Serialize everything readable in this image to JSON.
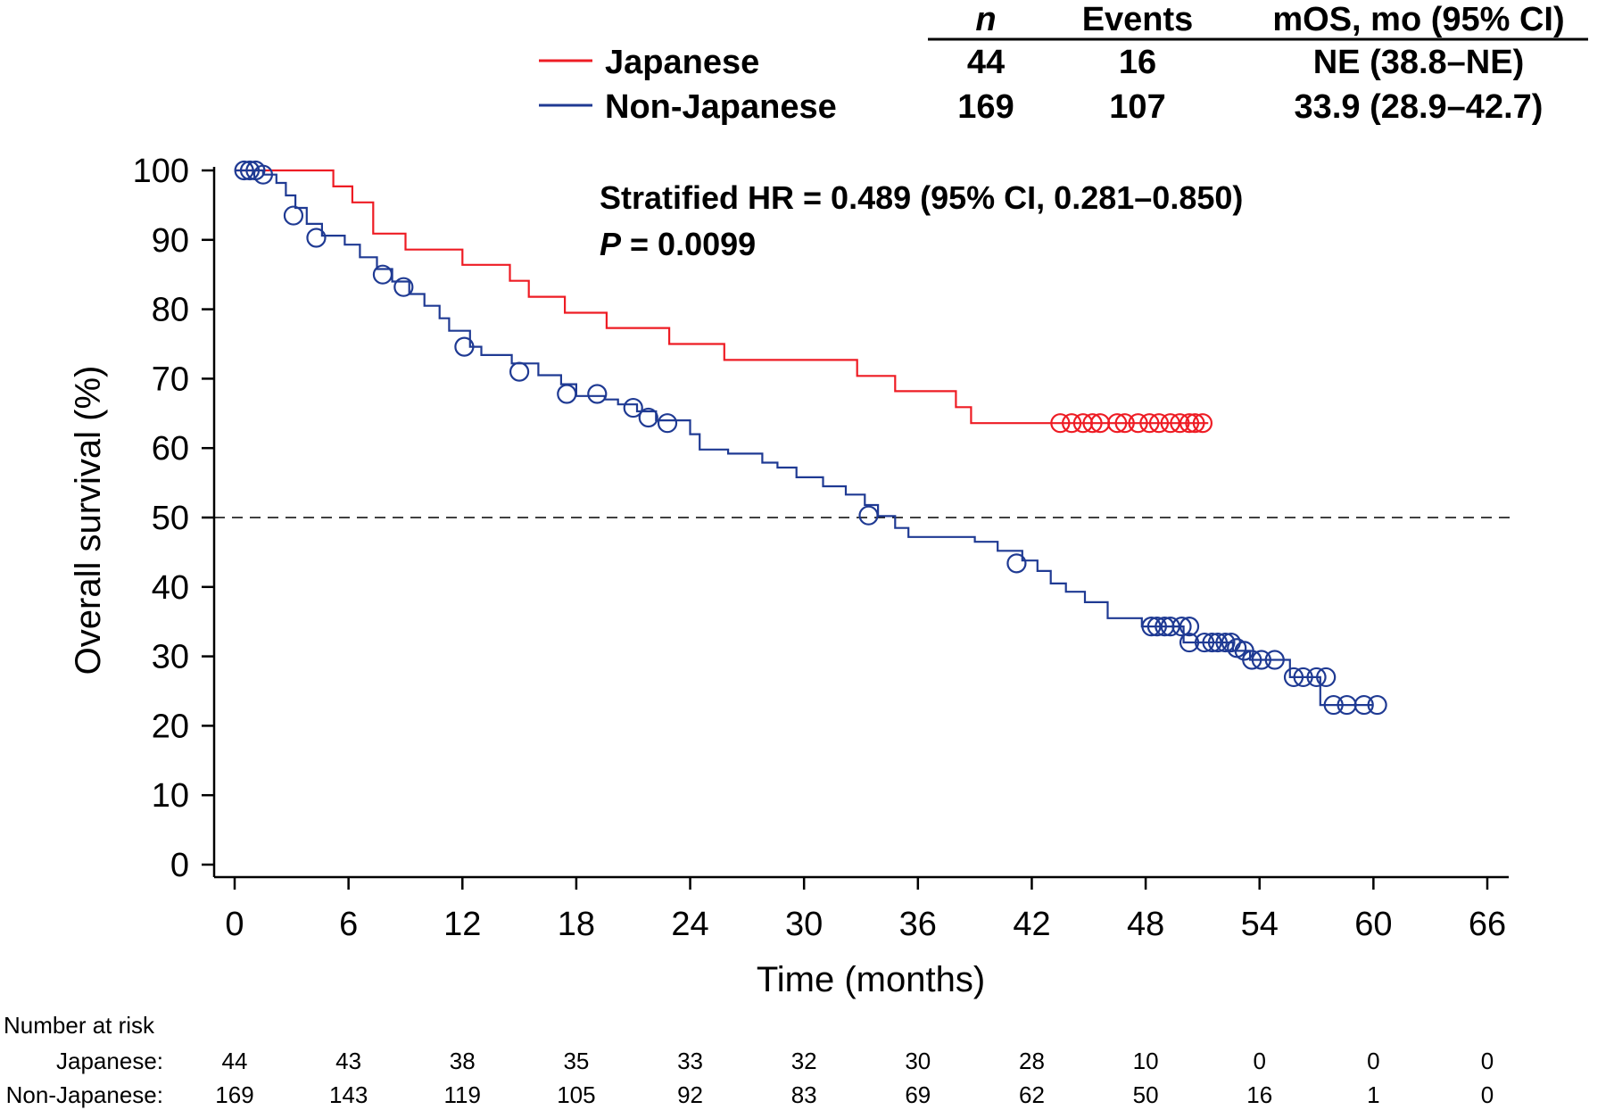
{
  "chart_data": {
    "type": "line",
    "subtype": "kaplan-meier",
    "xlabel": "Time (months)",
    "ylabel": "Overall survival (%)",
    "xlim": [
      0,
      66
    ],
    "ylim": [
      0,
      100
    ],
    "xticks": [
      "0",
      "6",
      "12",
      "18",
      "24",
      "30",
      "36",
      "42",
      "48",
      "54",
      "60",
      "66"
    ],
    "yticks": [
      "0",
      "10",
      "20",
      "30",
      "40",
      "50",
      "60",
      "70",
      "80",
      "90",
      "100"
    ],
    "reference_line": {
      "y": 50,
      "style": "dashed"
    },
    "annotation": {
      "hr_text": "Stratified HR = 0.489 (95% CI, 0.281–0.850)",
      "p_label": "P",
      "p_value": " = 0.0099"
    },
    "table_header": {
      "n": "n",
      "events": "Events",
      "mos": "mOS, mo (95% CI)"
    },
    "series": [
      {
        "name": "Japanese",
        "color": "#ee1c24",
        "n": "44",
        "events": "16",
        "mos": "NE (38.8–NE)",
        "steps": [
          [
            0,
            100
          ],
          [
            5.2,
            97.7
          ],
          [
            6.2,
            95.4
          ],
          [
            7.3,
            90.9
          ],
          [
            9.0,
            88.6
          ],
          [
            12.0,
            86.4
          ],
          [
            14.5,
            84.1
          ],
          [
            15.5,
            81.8
          ],
          [
            17.4,
            79.5
          ],
          [
            19.6,
            77.3
          ],
          [
            22.9,
            75.0
          ],
          [
            25.8,
            72.7
          ],
          [
            32.8,
            70.4
          ],
          [
            34.8,
            68.2
          ],
          [
            38.0,
            65.9
          ],
          [
            38.8,
            63.6
          ],
          [
            51.3,
            63.6
          ]
        ],
        "censored": [
          [
            43.5,
            63.6
          ],
          [
            44.1,
            63.6
          ],
          [
            44.7,
            63.6
          ],
          [
            45.2,
            63.6
          ],
          [
            45.6,
            63.6
          ],
          [
            46.5,
            63.6
          ],
          [
            46.9,
            63.6
          ],
          [
            47.6,
            63.6
          ],
          [
            48.2,
            63.6
          ],
          [
            48.7,
            63.6
          ],
          [
            49.3,
            63.6
          ],
          [
            49.8,
            63.6
          ],
          [
            50.3,
            63.6
          ],
          [
            50.6,
            63.6
          ],
          [
            51.0,
            63.6
          ]
        ]
      },
      {
        "name": "Non-Japanese",
        "color": "#1f3a93",
        "n": "169",
        "events": "107",
        "mos": "33.9 (28.9–42.7)",
        "steps": [
          [
            0,
            100
          ],
          [
            1.5,
            99.4
          ],
          [
            2.2,
            98.2
          ],
          [
            2.7,
            96.4
          ],
          [
            3.2,
            94.6
          ],
          [
            3.8,
            92.3
          ],
          [
            4.6,
            90.6
          ],
          [
            5.8,
            89.3
          ],
          [
            6.6,
            87.5
          ],
          [
            7.5,
            85.8
          ],
          [
            8.3,
            84.0
          ],
          [
            9.2,
            82.2
          ],
          [
            10.0,
            80.5
          ],
          [
            10.8,
            78.7
          ],
          [
            11.3,
            76.9
          ],
          [
            12.4,
            74.6
          ],
          [
            13.0,
            73.4
          ],
          [
            14.6,
            72.2
          ],
          [
            16.0,
            70.5
          ],
          [
            17.2,
            69.2
          ],
          [
            18.0,
            67.5
          ],
          [
            19.5,
            67.0
          ],
          [
            20.2,
            66.3
          ],
          [
            21.2,
            65.3
          ],
          [
            22.2,
            64.0
          ],
          [
            24.0,
            62.0
          ],
          [
            24.5,
            59.8
          ],
          [
            26.0,
            59.2
          ],
          [
            27.8,
            57.9
          ],
          [
            28.6,
            57.2
          ],
          [
            29.6,
            55.8
          ],
          [
            31.0,
            54.5
          ],
          [
            32.2,
            53.3
          ],
          [
            33.2,
            51.8
          ],
          [
            33.9,
            50.2
          ],
          [
            34.8,
            48.5
          ],
          [
            35.5,
            47.2
          ],
          [
            39.0,
            46.5
          ],
          [
            40.2,
            45.2
          ],
          [
            41.5,
            43.8
          ],
          [
            42.3,
            42.3
          ],
          [
            43.0,
            40.5
          ],
          [
            43.8,
            39.3
          ],
          [
            44.8,
            37.8
          ],
          [
            46.0,
            35.5
          ],
          [
            47.8,
            34.3
          ],
          [
            50.0,
            32.0
          ],
          [
            52.6,
            30.8
          ],
          [
            53.5,
            29.5
          ],
          [
            55.6,
            27.0
          ],
          [
            57.2,
            23.0
          ],
          [
            60.0,
            23.0
          ]
        ],
        "censored": [
          [
            0.5,
            100
          ],
          [
            0.8,
            100
          ],
          [
            1.1,
            100
          ],
          [
            1.5,
            99.4
          ],
          [
            3.1,
            93.5
          ],
          [
            4.3,
            90.3
          ],
          [
            7.8,
            85.0
          ],
          [
            8.9,
            83.2
          ],
          [
            12.1,
            74.6
          ],
          [
            15.0,
            71.0
          ],
          [
            17.5,
            67.8
          ],
          [
            19.1,
            67.8
          ],
          [
            21.0,
            65.8
          ],
          [
            21.8,
            64.4
          ],
          [
            22.8,
            63.6
          ],
          [
            33.4,
            50.3
          ],
          [
            41.2,
            43.4
          ],
          [
            48.3,
            34.3
          ],
          [
            48.6,
            34.3
          ],
          [
            49.0,
            34.3
          ],
          [
            49.3,
            34.3
          ],
          [
            49.9,
            34.3
          ],
          [
            50.3,
            34.3
          ],
          [
            50.3,
            32.0
          ],
          [
            51.1,
            32.0
          ],
          [
            51.5,
            32.0
          ],
          [
            51.8,
            32.0
          ],
          [
            52.2,
            32.0
          ],
          [
            52.5,
            32.0
          ],
          [
            52.8,
            31.2
          ],
          [
            53.2,
            30.8
          ],
          [
            53.6,
            29.5
          ],
          [
            54.1,
            29.5
          ],
          [
            54.8,
            29.5
          ],
          [
            55.8,
            27.0
          ],
          [
            56.3,
            27.0
          ],
          [
            57.0,
            27.0
          ],
          [
            57.5,
            27.0
          ],
          [
            57.9,
            23.0
          ],
          [
            58.6,
            23.0
          ],
          [
            59.5,
            23.0
          ],
          [
            60.2,
            23.0
          ]
        ]
      }
    ],
    "risk_table": {
      "title": "Number at risk",
      "times": [
        0,
        6,
        12,
        18,
        24,
        30,
        36,
        42,
        48,
        54,
        60,
        66
      ],
      "rows": [
        {
          "label": "Japanese:",
          "values": [
            "44",
            "43",
            "38",
            "35",
            "33",
            "32",
            "30",
            "28",
            "10",
            "0",
            "0",
            "0"
          ]
        },
        {
          "label": "Non-Japanese:",
          "values": [
            "169",
            "143",
            "119",
            "105",
            "92",
            "83",
            "69",
            "62",
            "50",
            "16",
            "1",
            "0"
          ]
        }
      ]
    }
  }
}
